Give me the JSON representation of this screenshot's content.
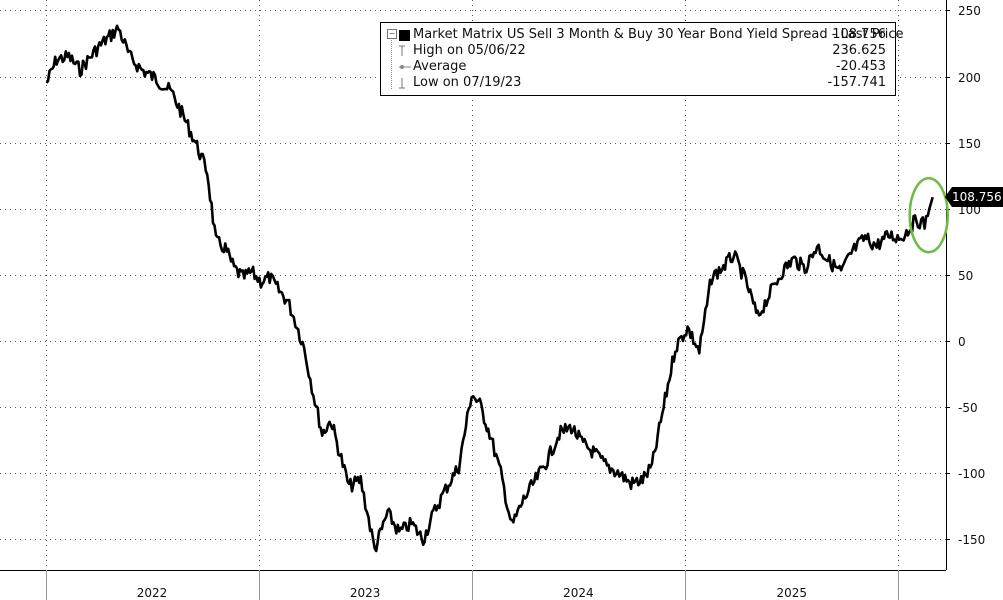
{
  "legend": {
    "series_label": "Market Matrix US Sell 3 Month & Buy 30 Year Bond Yield Spread - Last Price",
    "series_value": "108.756",
    "high_label": "High on 05/06/22",
    "high_value": "236.625",
    "average_label": "Average",
    "average_value": "-20.453",
    "low_label": "Low on 07/19/23",
    "low_value": "-157.741"
  },
  "last_price_tag": "108.756",
  "colors": {
    "line": "#000000",
    "highlight_ellipse": "#6dbb45",
    "grid": "#555555"
  },
  "chart_data": {
    "type": "line",
    "title": "",
    "xlabel": "",
    "ylabel": "",
    "ylim": [
      -170,
      250
    ],
    "y_ticks": [
      250,
      200,
      150,
      100,
      50,
      0,
      -50,
      -100,
      -150
    ],
    "x_tick_labels": [
      "2022",
      "2023",
      "2024",
      "2025"
    ],
    "grid": true,
    "legend_position": "top-right",
    "y_axis_position": "right",
    "series": [
      {
        "name": "Market Matrix US Sell 3 Month & Buy 30 Year Bond Yield Spread - Last Price",
        "points": [
          [
            "2022-01-03",
            195
          ],
          [
            "2022-01-20",
            213
          ],
          [
            "2022-02-10",
            215
          ],
          [
            "2022-03-01",
            205
          ],
          [
            "2022-04-01",
            222
          ],
          [
            "2022-05-06",
            236.6
          ],
          [
            "2022-05-25",
            215
          ],
          [
            "2022-06-15",
            205
          ],
          [
            "2022-07-10",
            198
          ],
          [
            "2022-08-05",
            188
          ],
          [
            "2022-08-25",
            170
          ],
          [
            "2022-09-15",
            150
          ],
          [
            "2022-10-05",
            128
          ],
          [
            "2022-10-20",
            75
          ],
          [
            "2022-11-05",
            70
          ],
          [
            "2022-11-20",
            55
          ],
          [
            "2022-12-05",
            48
          ],
          [
            "2022-12-20",
            52
          ],
          [
            "2023-01-05",
            45
          ],
          [
            "2023-01-20",
            48
          ],
          [
            "2023-02-05",
            38
          ],
          [
            "2023-02-20",
            30
          ],
          [
            "2023-03-05",
            15
          ],
          [
            "2023-03-20",
            -5
          ],
          [
            "2023-04-05",
            -40
          ],
          [
            "2023-04-20",
            -70
          ],
          [
            "2023-05-05",
            -60
          ],
          [
            "2023-05-20",
            -85
          ],
          [
            "2023-06-05",
            -110
          ],
          [
            "2023-06-25",
            -105
          ],
          [
            "2023-07-19",
            -157.7
          ],
          [
            "2023-08-10",
            -130
          ],
          [
            "2023-08-30",
            -145
          ],
          [
            "2023-09-20",
            -138
          ],
          [
            "2023-10-10",
            -150
          ],
          [
            "2023-10-30",
            -128
          ],
          [
            "2023-11-20",
            -110
          ],
          [
            "2023-12-10",
            -95
          ],
          [
            "2024-01-01",
            -40
          ],
          [
            "2024-01-15",
            -48
          ],
          [
            "2024-02-01",
            -70
          ],
          [
            "2024-02-20",
            -100
          ],
          [
            "2024-03-10",
            -140
          ],
          [
            "2024-03-30",
            -120
          ],
          [
            "2024-04-20",
            -105
          ],
          [
            "2024-05-10",
            -90
          ],
          [
            "2024-05-30",
            -70
          ],
          [
            "2024-06-20",
            -65
          ],
          [
            "2024-07-10",
            -78
          ],
          [
            "2024-07-30",
            -85
          ],
          [
            "2024-08-20",
            -95
          ],
          [
            "2024-09-10",
            -100
          ],
          [
            "2024-09-30",
            -108
          ],
          [
            "2024-10-20",
            -105
          ],
          [
            "2024-11-05",
            -95
          ],
          [
            "2024-11-25",
            -50
          ],
          [
            "2024-12-15",
            -5
          ],
          [
            "2025-01-05",
            10
          ],
          [
            "2025-01-25",
            -8
          ],
          [
            "2025-02-15",
            48
          ],
          [
            "2025-03-05",
            55
          ],
          [
            "2025-03-25",
            65
          ],
          [
            "2025-04-15",
            45
          ],
          [
            "2025-05-05",
            18
          ],
          [
            "2025-05-25",
            35
          ],
          [
            "2025-06-15",
            52
          ],
          [
            "2025-07-05",
            62
          ],
          [
            "2025-07-25",
            55
          ],
          [
            "2025-08-15",
            72
          ],
          [
            "2025-09-05",
            60
          ],
          [
            "2025-09-25",
            52
          ],
          [
            "2025-10-15",
            68
          ],
          [
            "2025-11-05",
            78
          ],
          [
            "2025-11-25",
            72
          ],
          [
            "2025-12-15",
            80
          ],
          [
            "2026-01-05",
            78
          ],
          [
            "2026-01-20",
            85
          ],
          [
            "2026-02-01",
            92
          ],
          [
            "2026-02-15",
            88
          ],
          [
            "2026-03-01",
            108.756
          ]
        ]
      }
    ],
    "annotations": [
      {
        "type": "ellipse",
        "around": "last values",
        "color": "#6dbb45"
      }
    ]
  }
}
